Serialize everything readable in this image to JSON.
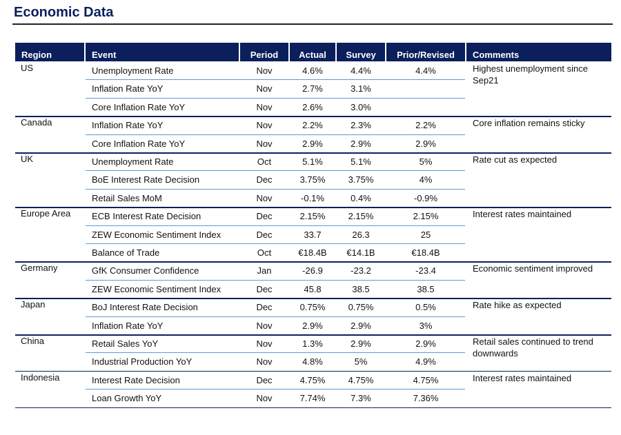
{
  "title": "Economic Data",
  "table": {
    "headers": [
      "Region",
      "Event",
      "Period",
      "Actual",
      "Survey",
      "Prior/Revised",
      "Comments"
    ],
    "groups": [
      {
        "region": "US",
        "comment": "Highest unemployment since Sep21",
        "rows": [
          {
            "event": "Unemployment Rate",
            "period": "Nov",
            "actual": "4.6%",
            "survey": "4.4%",
            "prior": "4.4%"
          },
          {
            "event": "Inflation Rate YoY",
            "period": "Nov",
            "actual": "2.7%",
            "survey": "3.1%"
          },
          {
            "event": "Core Inflation Rate YoY",
            "period": "Nov",
            "actual": "2.6%",
            "survey": "3.0%"
          }
        ]
      },
      {
        "region": "Canada",
        "comment": "Core inflation remains sticky",
        "rows": [
          {
            "event": "Inflation Rate YoY",
            "period": "Nov",
            "actual": "2.2%",
            "survey": "2.3%",
            "prior": "2.2%"
          },
          {
            "event": "Core Inflation Rate YoY",
            "period": "Nov",
            "actual": "2.9%",
            "survey": "2.9%",
            "prior": "2.9%"
          }
        ]
      },
      {
        "region": "UK",
        "comment": "Rate cut as expected",
        "rows": [
          {
            "event": "Unemployment Rate",
            "period": "Oct",
            "actual": "5.1%",
            "survey": "5.1%",
            "prior": "5%"
          },
          {
            "event": "BoE Interest Rate Decision",
            "period": "Dec",
            "actual": "3.75%",
            "survey": "3.75%",
            "prior": "4%"
          },
          {
            "event": "Retail Sales MoM",
            "period": "Nov",
            "actual": "-0.1%",
            "survey": "0.4%",
            "prior": "-0.9%"
          }
        ]
      },
      {
        "region": "Europe Area",
        "comment": "Interest rates maintained",
        "rows": [
          {
            "event": "ECB Interest Rate Decision",
            "period": "Dec",
            "actual": "2.15%",
            "survey": "2.15%",
            "prior": "2.15%"
          },
          {
            "event": "ZEW Economic Sentiment Index",
            "period": "Dec",
            "actual": "33.7",
            "survey": "26.3",
            "prior": "25"
          },
          {
            "event": "Balance of Trade",
            "period": "Oct",
            "actual": "€18.4B",
            "survey": "€14.1B",
            "prior": "€18.4B"
          }
        ]
      },
      {
        "region": "Germany",
        "comment": "Economic sentiment improved",
        "rows": [
          {
            "event": "GfK Consumer Confidence",
            "period": "Jan",
            "actual": "-26.9",
            "survey": "-23.2",
            "prior": "-23.4"
          },
          {
            "event": "ZEW Economic Sentiment Index",
            "period": "Dec",
            "actual": "45.8",
            "survey": "38.5",
            "prior": "38.5"
          }
        ]
      },
      {
        "region": "Japan",
        "comment": "Rate hike as expected",
        "rows": [
          {
            "event": "BoJ Interest Rate Decision",
            "period": "Dec",
            "actual": "0.75%",
            "survey": "0.75%",
            "prior": "0.5%"
          },
          {
            "event": "Inflation Rate YoY",
            "period": "Nov",
            "actual": "2.9%",
            "survey": "2.9%",
            "prior": "3%"
          }
        ]
      },
      {
        "region": "China",
        "comment": "Retail sales continued to trend downwards",
        "rows": [
          {
            "event": "Retail Sales YoY",
            "period": "Nov",
            "actual": "1.3%",
            "survey": "2.9%",
            "prior": "2.9%"
          },
          {
            "event": "Industrial Production YoY",
            "period": "Nov",
            "actual": "4.8%",
            "survey": "5%",
            "prior": "4.9%"
          }
        ]
      },
      {
        "region": "Indonesia",
        "comment": "Interest rates maintained",
        "rows": [
          {
            "event": "Interest Rate Decision",
            "period": "Dec",
            "actual": "4.75%",
            "survey": "4.75%",
            "prior": "4.75%"
          },
          {
            "event": "Loan Growth YoY",
            "period": "Nov",
            "actual": "7.74%",
            "survey": "7.3%",
            "prior": "7.36%"
          }
        ]
      }
    ]
  }
}
